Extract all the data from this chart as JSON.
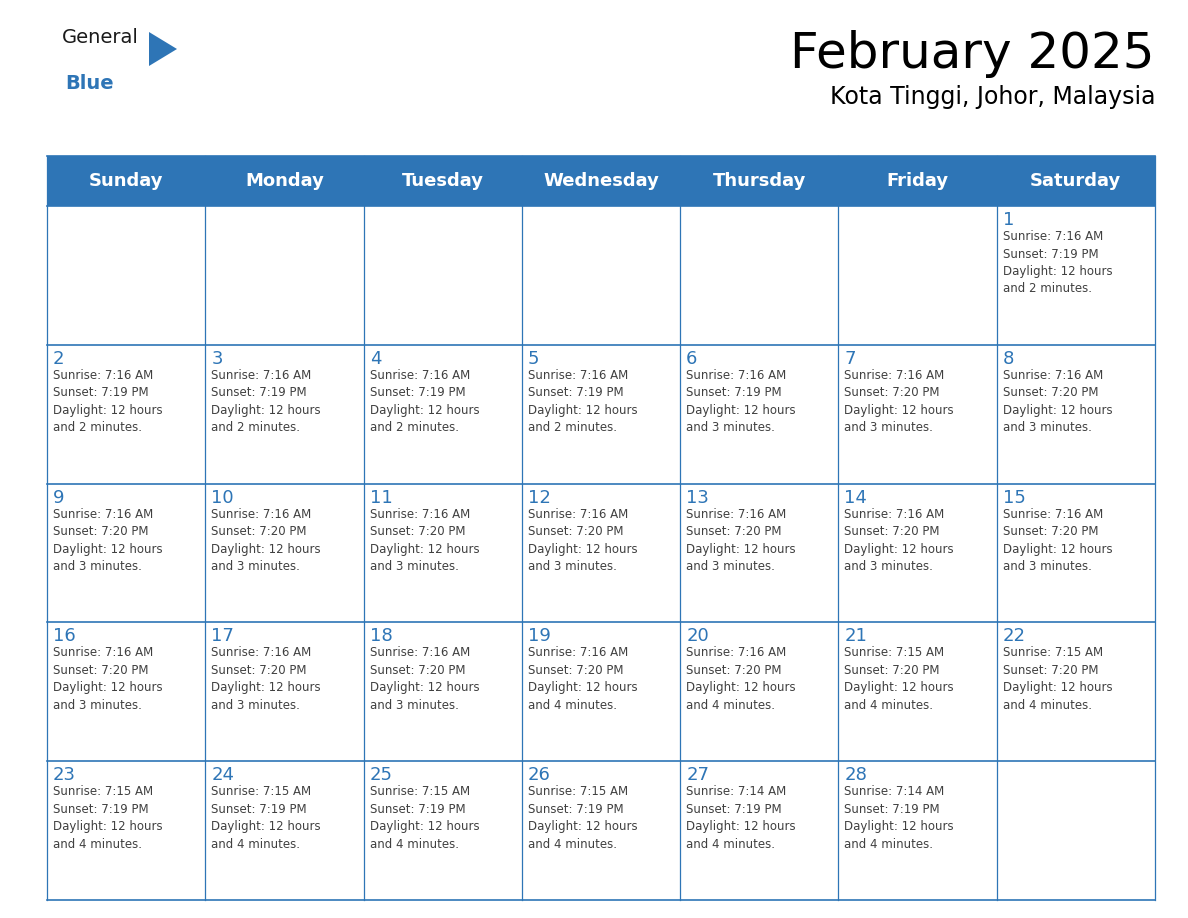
{
  "title": "February 2025",
  "subtitle": "Kota Tinggi, Johor, Malaysia",
  "days_of_week": [
    "Sunday",
    "Monday",
    "Tuesday",
    "Wednesday",
    "Thursday",
    "Friday",
    "Saturday"
  ],
  "header_bg": "#2E75B6",
  "header_text_color": "#FFFFFF",
  "cell_bg": "#FFFFFF",
  "cell_border_color": "#2E75B6",
  "day_number_color": "#2E75B6",
  "cell_text_color": "#404040",
  "title_color": "#000000",
  "subtitle_color": "#000000",
  "logo_general_color": "#1a1a1a",
  "logo_blue_color": "#2E75B6",
  "background_color": "#FFFFFF",
  "calendar": [
    [
      null,
      null,
      null,
      null,
      null,
      null,
      {
        "day": 1,
        "sunrise": "7:16 AM",
        "sunset": "7:19 PM",
        "daylight": "12 hours\nand 2 minutes."
      }
    ],
    [
      {
        "day": 2,
        "sunrise": "7:16 AM",
        "sunset": "7:19 PM",
        "daylight": "12 hours\nand 2 minutes."
      },
      {
        "day": 3,
        "sunrise": "7:16 AM",
        "sunset": "7:19 PM",
        "daylight": "12 hours\nand 2 minutes."
      },
      {
        "day": 4,
        "sunrise": "7:16 AM",
        "sunset": "7:19 PM",
        "daylight": "12 hours\nand 2 minutes."
      },
      {
        "day": 5,
        "sunrise": "7:16 AM",
        "sunset": "7:19 PM",
        "daylight": "12 hours\nand 2 minutes."
      },
      {
        "day": 6,
        "sunrise": "7:16 AM",
        "sunset": "7:19 PM",
        "daylight": "12 hours\nand 3 minutes."
      },
      {
        "day": 7,
        "sunrise": "7:16 AM",
        "sunset": "7:20 PM",
        "daylight": "12 hours\nand 3 minutes."
      },
      {
        "day": 8,
        "sunrise": "7:16 AM",
        "sunset": "7:20 PM",
        "daylight": "12 hours\nand 3 minutes."
      }
    ],
    [
      {
        "day": 9,
        "sunrise": "7:16 AM",
        "sunset": "7:20 PM",
        "daylight": "12 hours\nand 3 minutes."
      },
      {
        "day": 10,
        "sunrise": "7:16 AM",
        "sunset": "7:20 PM",
        "daylight": "12 hours\nand 3 minutes."
      },
      {
        "day": 11,
        "sunrise": "7:16 AM",
        "sunset": "7:20 PM",
        "daylight": "12 hours\nand 3 minutes."
      },
      {
        "day": 12,
        "sunrise": "7:16 AM",
        "sunset": "7:20 PM",
        "daylight": "12 hours\nand 3 minutes."
      },
      {
        "day": 13,
        "sunrise": "7:16 AM",
        "sunset": "7:20 PM",
        "daylight": "12 hours\nand 3 minutes."
      },
      {
        "day": 14,
        "sunrise": "7:16 AM",
        "sunset": "7:20 PM",
        "daylight": "12 hours\nand 3 minutes."
      },
      {
        "day": 15,
        "sunrise": "7:16 AM",
        "sunset": "7:20 PM",
        "daylight": "12 hours\nand 3 minutes."
      }
    ],
    [
      {
        "day": 16,
        "sunrise": "7:16 AM",
        "sunset": "7:20 PM",
        "daylight": "12 hours\nand 3 minutes."
      },
      {
        "day": 17,
        "sunrise": "7:16 AM",
        "sunset": "7:20 PM",
        "daylight": "12 hours\nand 3 minutes."
      },
      {
        "day": 18,
        "sunrise": "7:16 AM",
        "sunset": "7:20 PM",
        "daylight": "12 hours\nand 3 minutes."
      },
      {
        "day": 19,
        "sunrise": "7:16 AM",
        "sunset": "7:20 PM",
        "daylight": "12 hours\nand 4 minutes."
      },
      {
        "day": 20,
        "sunrise": "7:16 AM",
        "sunset": "7:20 PM",
        "daylight": "12 hours\nand 4 minutes."
      },
      {
        "day": 21,
        "sunrise": "7:15 AM",
        "sunset": "7:20 PM",
        "daylight": "12 hours\nand 4 minutes."
      },
      {
        "day": 22,
        "sunrise": "7:15 AM",
        "sunset": "7:20 PM",
        "daylight": "12 hours\nand 4 minutes."
      }
    ],
    [
      {
        "day": 23,
        "sunrise": "7:15 AM",
        "sunset": "7:19 PM",
        "daylight": "12 hours\nand 4 minutes."
      },
      {
        "day": 24,
        "sunrise": "7:15 AM",
        "sunset": "7:19 PM",
        "daylight": "12 hours\nand 4 minutes."
      },
      {
        "day": 25,
        "sunrise": "7:15 AM",
        "sunset": "7:19 PM",
        "daylight": "12 hours\nand 4 minutes."
      },
      {
        "day": 26,
        "sunrise": "7:15 AM",
        "sunset": "7:19 PM",
        "daylight": "12 hours\nand 4 minutes."
      },
      {
        "day": 27,
        "sunrise": "7:14 AM",
        "sunset": "7:19 PM",
        "daylight": "12 hours\nand 4 minutes."
      },
      {
        "day": 28,
        "sunrise": "7:14 AM",
        "sunset": "7:19 PM",
        "daylight": "12 hours\nand 4 minutes."
      },
      null
    ]
  ],
  "n_rows": 5,
  "n_cols": 7,
  "title_fontsize": 36,
  "subtitle_fontsize": 17,
  "header_fontsize": 13,
  "day_number_fontsize": 13,
  "cell_text_fontsize": 8.5
}
